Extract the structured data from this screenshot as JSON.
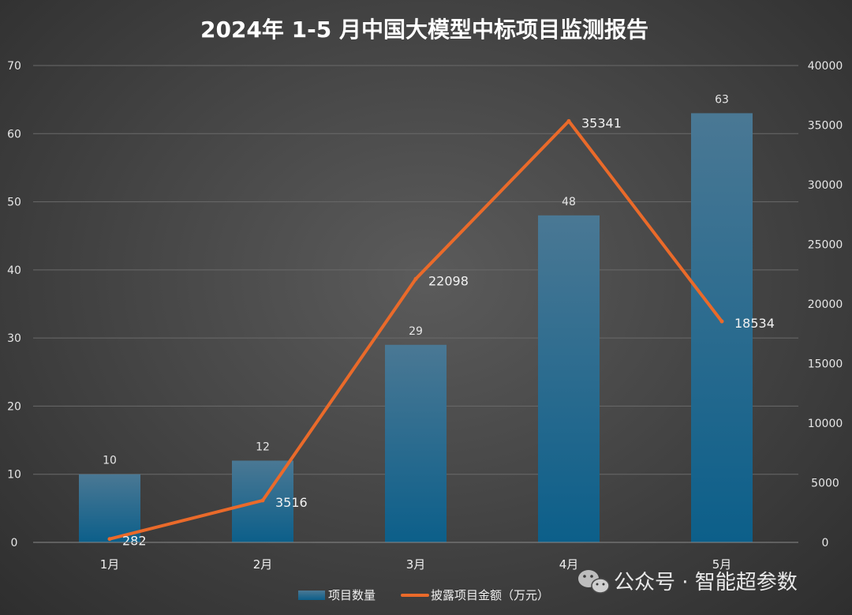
{
  "colors": {
    "bar": "#1a6d96",
    "line": "#ea6a2a",
    "grid": "#6a6a6a"
  },
  "watermark": {
    "icon": "wechat-icon",
    "text": "公众号 · 智能超参数"
  },
  "chart_data": {
    "type": "bar",
    "title": "2024年 1-5 月中国大模型中标项目监测报告",
    "categories": [
      "1月",
      "2月",
      "3月",
      "4月",
      "5月"
    ],
    "ylim": [
      0,
      70
    ],
    "y_ticks": [
      0,
      10,
      20,
      30,
      40,
      50,
      60,
      70
    ],
    "y2lim": [
      0,
      40000
    ],
    "y2_ticks": [
      0,
      5000,
      10000,
      15000,
      20000,
      25000,
      30000,
      35000,
      40000
    ],
    "grid": true,
    "legend_position": "bottom",
    "series": [
      {
        "name": "项目数量",
        "type": "bar",
        "axis": "left",
        "values": [
          10,
          12,
          29,
          48,
          63
        ]
      },
      {
        "name": "披露项目金额（万元）",
        "type": "line",
        "axis": "right",
        "values": [
          282,
          3516,
          22098,
          35341,
          18534
        ]
      }
    ]
  }
}
